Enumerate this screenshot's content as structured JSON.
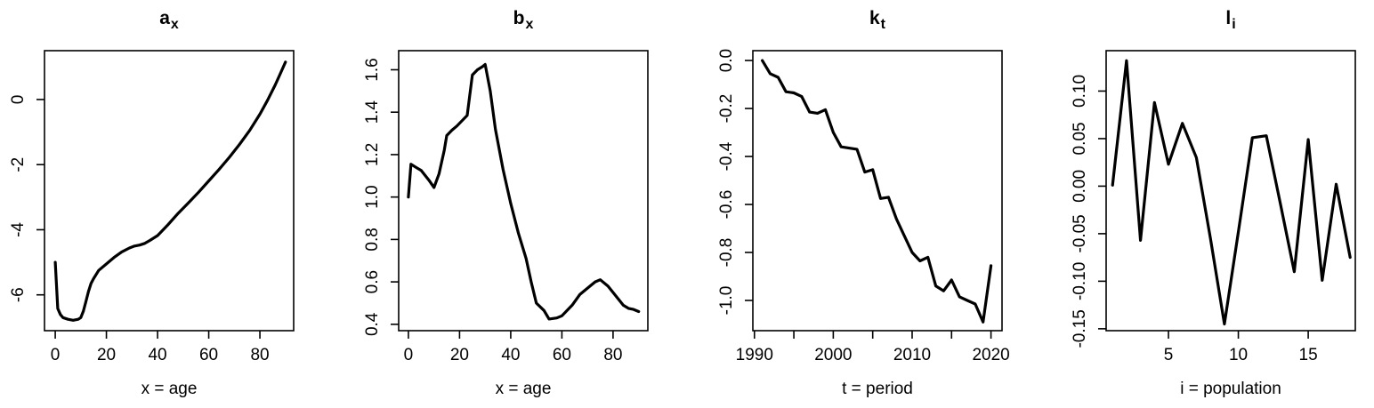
{
  "figure": {
    "background_color": "#ffffff",
    "stroke_color": "#000000",
    "text_color": "#000000"
  },
  "chart_data": [
    {
      "type": "line",
      "title_main": "a",
      "title_sub": "x",
      "xlabel": "x = age",
      "xlim": [
        -4.2,
        93.2
      ],
      "ylim": [
        -7.1,
        1.5
      ],
      "xticks": {
        "values": [
          0,
          20,
          40,
          60,
          80
        ],
        "labels": [
          "0",
          "20",
          "40",
          "60",
          "80"
        ]
      },
      "minor_xticks": [],
      "yticks": {
        "values": [
          0,
          -2,
          -4,
          -6
        ],
        "labels": [
          "0",
          "-2",
          "-4",
          "-6"
        ]
      },
      "x": [
        0,
        1,
        2,
        3,
        5,
        7,
        9,
        10,
        11,
        12,
        13,
        14,
        15,
        17,
        20,
        23,
        26,
        29,
        31,
        33,
        35,
        37,
        40,
        44,
        48,
        52,
        56,
        60,
        64,
        68,
        72,
        76,
        80,
        83,
        86,
        88,
        90
      ],
      "y": [
        -5.0,
        -6.42,
        -6.6,
        -6.7,
        -6.75,
        -6.78,
        -6.75,
        -6.7,
        -6.5,
        -6.2,
        -5.9,
        -5.65,
        -5.5,
        -5.25,
        -5.05,
        -4.85,
        -4.68,
        -4.56,
        -4.5,
        -4.47,
        -4.42,
        -4.33,
        -4.18,
        -3.85,
        -3.5,
        -3.18,
        -2.85,
        -2.5,
        -2.15,
        -1.78,
        -1.38,
        -0.95,
        -0.45,
        -0.02,
        0.45,
        0.8,
        1.15
      ]
    },
    {
      "type": "line",
      "title_main": "b",
      "title_sub": "x",
      "xlabel": "x = age",
      "xlim": [
        -3.8,
        93.6
      ],
      "ylim": [
        0.37,
        1.69
      ],
      "xticks": {
        "values": [
          0,
          20,
          40,
          60,
          80
        ],
        "labels": [
          "0",
          "20",
          "40",
          "60",
          "80"
        ]
      },
      "minor_xticks": [],
      "yticks": {
        "values": [
          1.6,
          1.4,
          1.2,
          1.0,
          0.8,
          0.6,
          0.4
        ],
        "labels": [
          "1.6",
          "1.4",
          "1.2",
          "1.0",
          "0.8",
          "0.6",
          "0.4"
        ]
      },
      "x": [
        0,
        1,
        3,
        5,
        8,
        10,
        12,
        14,
        15,
        17,
        19,
        21,
        23,
        24,
        25,
        27,
        29,
        30,
        32,
        34,
        37,
        40,
        43,
        46,
        48,
        50,
        53,
        55,
        58,
        60,
        64,
        67,
        71,
        73,
        75,
        78,
        81,
        84,
        86,
        88,
        90
      ],
      "y": [
        1.0,
        1.155,
        1.14,
        1.125,
        1.08,
        1.045,
        1.11,
        1.22,
        1.29,
        1.315,
        1.335,
        1.36,
        1.385,
        1.48,
        1.575,
        1.6,
        1.615,
        1.625,
        1.5,
        1.32,
        1.13,
        0.97,
        0.83,
        0.71,
        0.6,
        0.5,
        0.465,
        0.425,
        0.43,
        0.44,
        0.49,
        0.54,
        0.58,
        0.6,
        0.61,
        0.58,
        0.535,
        0.49,
        0.475,
        0.47,
        0.46
      ]
    },
    {
      "type": "line",
      "title_main": "k",
      "title_sub": "t",
      "xlabel": "t = period",
      "xlim": [
        1989.8,
        2021.4
      ],
      "ylim": [
        -1.126,
        0.041
      ],
      "xticks": {
        "values": [
          1990,
          2000,
          2010,
          2020
        ],
        "labels": [
          "1990",
          "2000",
          "2010",
          "2020"
        ]
      },
      "minor_xticks": [
        1995,
        2005,
        2015
      ],
      "yticks": {
        "values": [
          0.0,
          -0.2,
          -0.4,
          -0.6,
          -0.8,
          -1.0
        ],
        "labels": [
          "0.0",
          "-0.2",
          "-0.4",
          "-0.6",
          "-0.8",
          "-1.0"
        ]
      },
      "x": [
        1991,
        1992,
        1993,
        1994,
        1995,
        1996,
        1997,
        1998,
        1999,
        2000,
        2001,
        2002,
        2003,
        2004,
        2005,
        2006,
        2007,
        2008,
        2009,
        2010,
        2011,
        2012,
        2013,
        2014,
        2015,
        2016,
        2017,
        2018,
        2019,
        2020
      ],
      "y": [
        0.0,
        -0.055,
        -0.07,
        -0.13,
        -0.135,
        -0.15,
        -0.215,
        -0.22,
        -0.205,
        -0.3,
        -0.36,
        -0.365,
        -0.37,
        -0.465,
        -0.455,
        -0.575,
        -0.57,
        -0.66,
        -0.73,
        -0.8,
        -0.835,
        -0.82,
        -0.94,
        -0.96,
        -0.915,
        -0.985,
        -1.0,
        -1.015,
        -1.09,
        -0.855
      ]
    },
    {
      "type": "line",
      "title_main": "l",
      "title_sub": "i",
      "xlabel": "i = population",
      "xlim": [
        0.54,
        18.37
      ],
      "ylim": [
        -0.152,
        0.1425
      ],
      "xticks": {
        "values": [
          5,
          10,
          15
        ],
        "labels": [
          "5",
          "10",
          "15"
        ]
      },
      "minor_xticks": [],
      "yticks": {
        "values": [
          0.1,
          0.05,
          0.0,
          -0.05,
          -0.1,
          -0.15
        ],
        "labels": [
          "0.10",
          "0.05",
          "0.00",
          "-0.05",
          "-0.10",
          "-0.15"
        ]
      },
      "x": [
        1,
        2,
        3,
        4,
        5,
        6,
        7,
        8,
        9,
        10,
        11,
        12,
        13,
        14,
        15,
        16,
        17,
        18
      ],
      "y": [
        0.001,
        0.132,
        -0.057,
        0.088,
        0.023,
        0.066,
        0.03,
        -0.055,
        -0.145,
        -0.048,
        0.051,
        0.053,
        -0.018,
        -0.09,
        0.049,
        -0.099,
        0.002,
        -0.075
      ]
    }
  ]
}
